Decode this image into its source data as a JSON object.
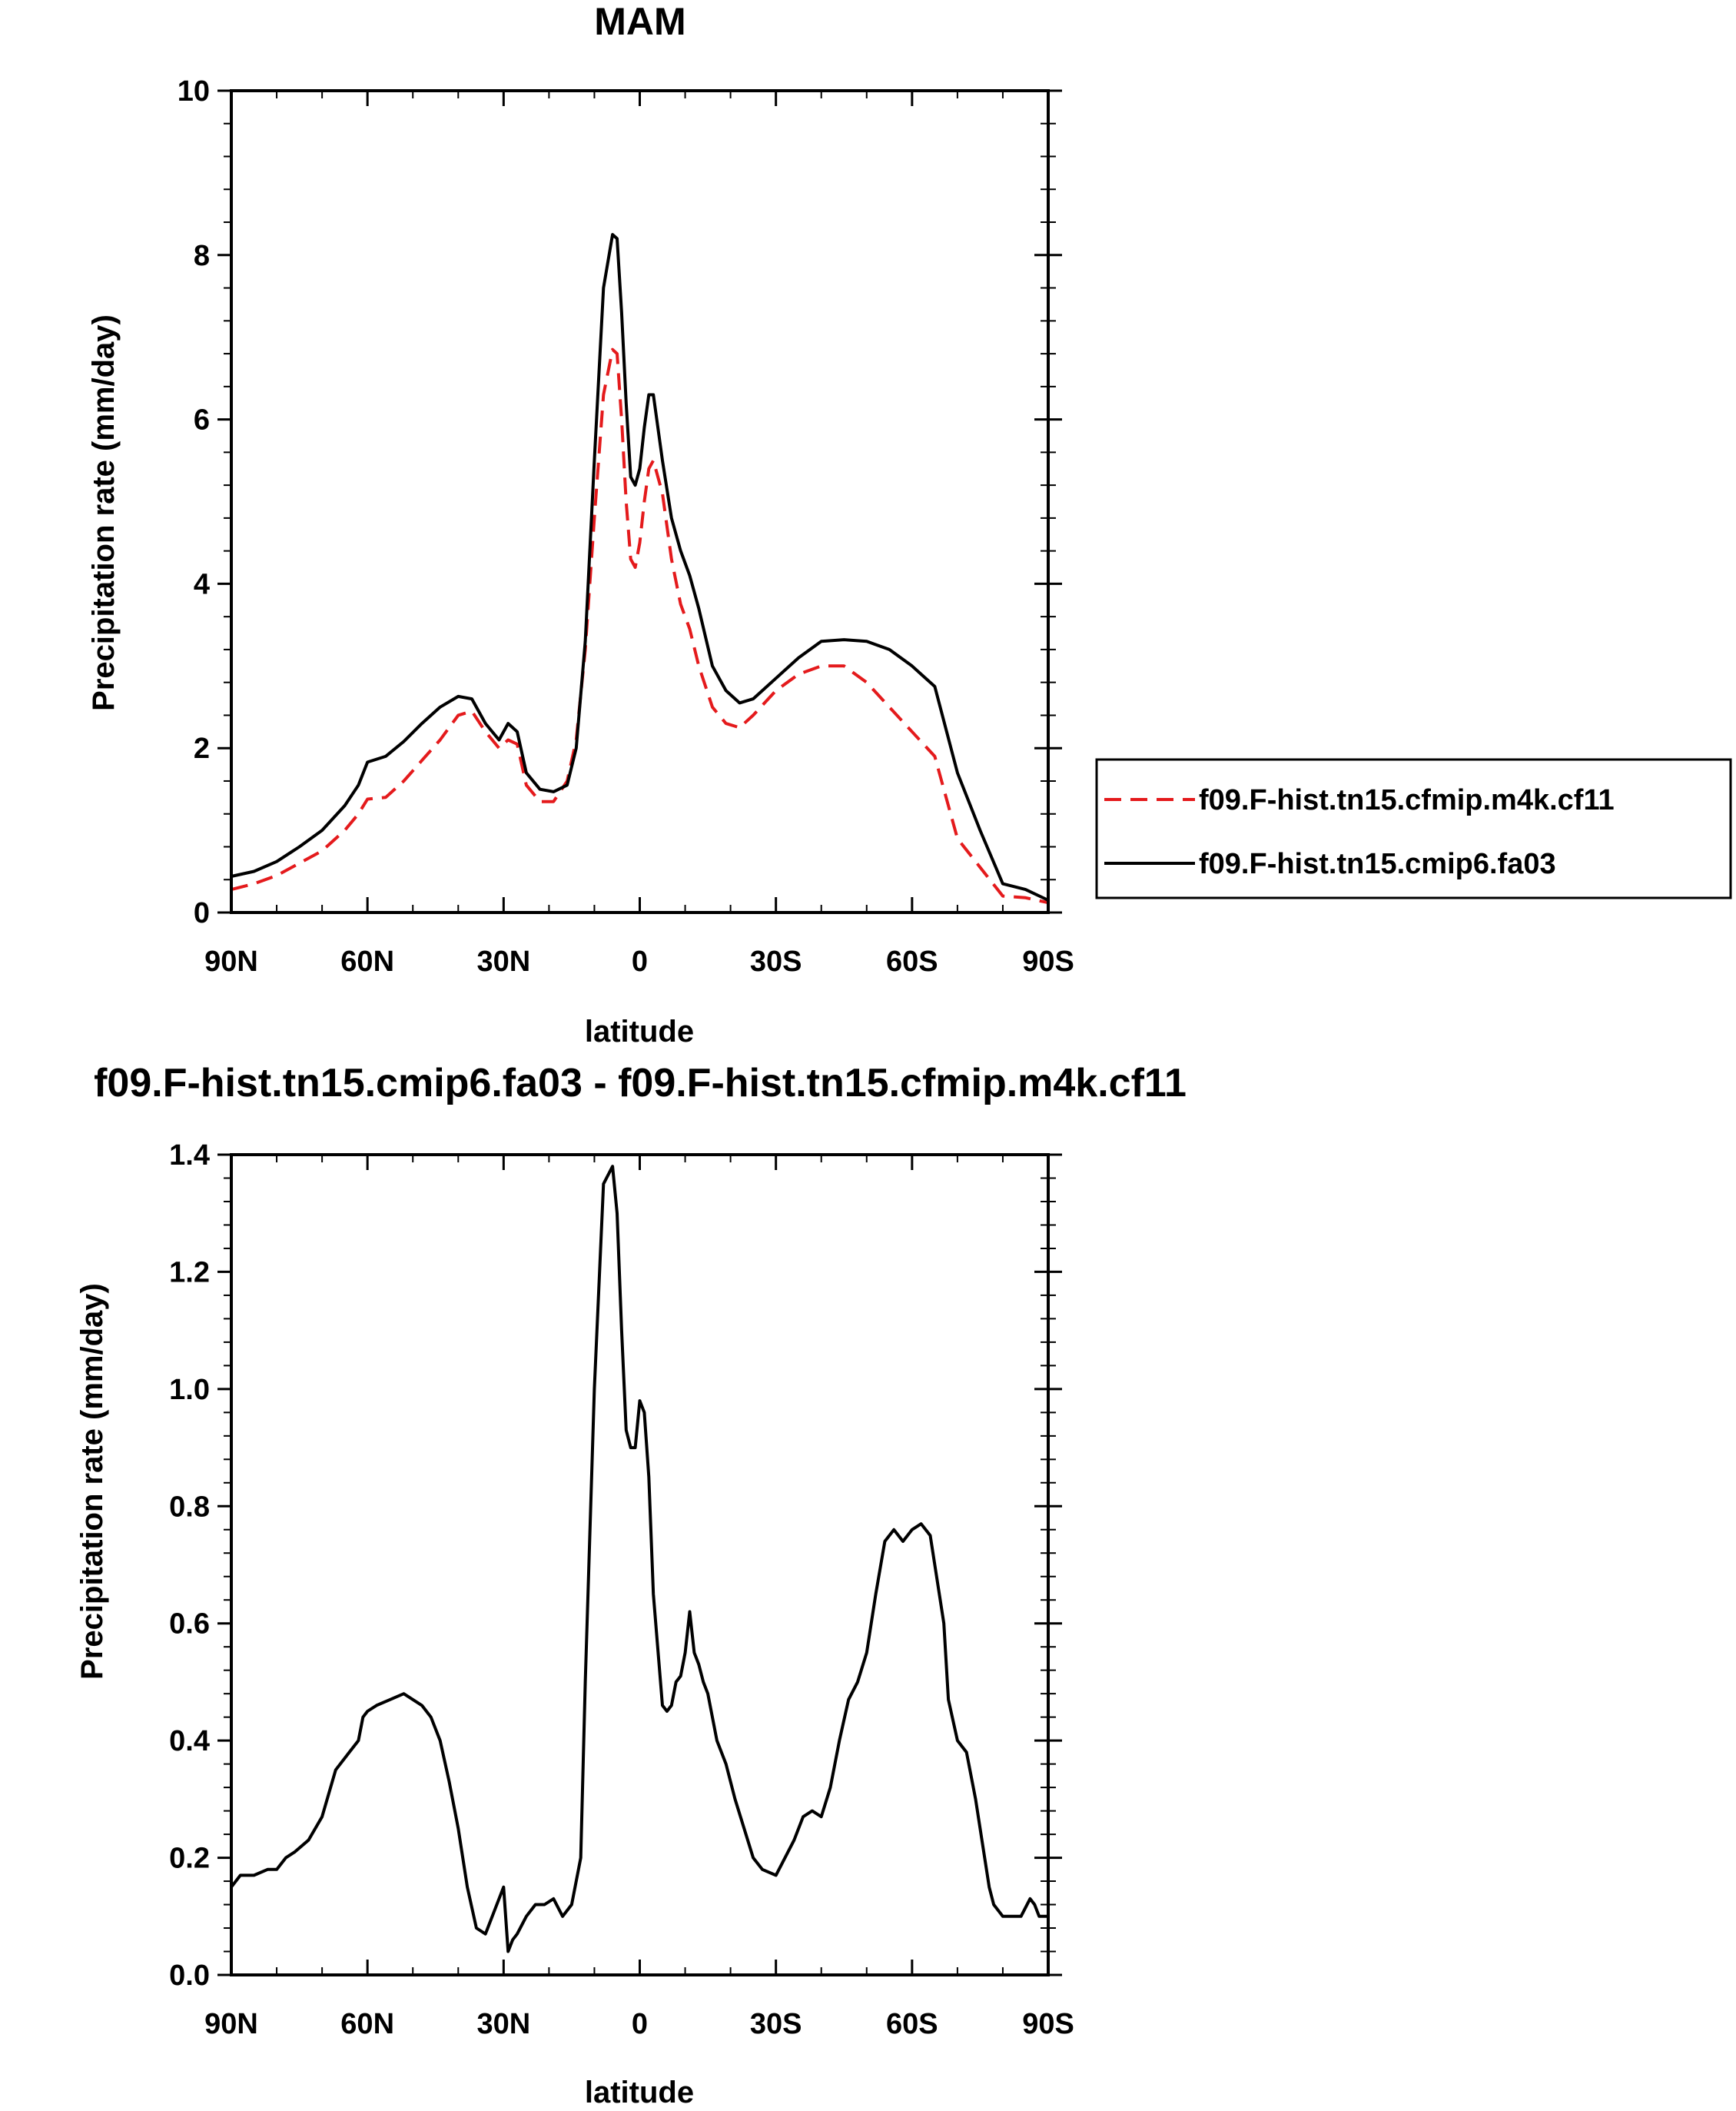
{
  "chart_data": [
    {
      "type": "line",
      "title": "MAM",
      "xlabel": "latitude",
      "ylabel": "Precipitation rate (mm/day)",
      "xlim": [
        90,
        -90
      ],
      "ylim": [
        0,
        10
      ],
      "x_ticks": [
        90,
        60,
        30,
        0,
        -30,
        -60,
        -90
      ],
      "x_tick_labels": [
        "90N",
        "60N",
        "30N",
        "0",
        "30S",
        "60S",
        "90S"
      ],
      "y_ticks": [
        0,
        2,
        4,
        6,
        8,
        10
      ],
      "y_tick_labels": [
        "0",
        "2",
        "4",
        "6",
        "8",
        "10"
      ],
      "legend_position": "right",
      "grid": false,
      "series": [
        {
          "name": "f09.F-hist.tn15.cfmip.m4k.cf11",
          "color": "#e41a1c",
          "style": "dashed",
          "x": [
            90,
            85,
            80,
            75,
            70,
            65,
            62,
            60,
            56,
            52,
            48,
            44,
            40,
            37,
            34,
            31,
            29,
            27,
            25,
            22,
            19,
            16,
            14,
            12,
            10,
            8,
            6,
            5,
            4,
            3,
            2,
            1,
            0,
            -1,
            -2,
            -3,
            -5,
            -7,
            -9,
            -11,
            -13,
            -16,
            -19,
            -22,
            -25,
            -30,
            -35,
            -40,
            -45,
            -50,
            -55,
            -60,
            -65,
            -70,
            -75,
            -80,
            -85,
            -90
          ],
          "y": [
            0.28,
            0.35,
            0.45,
            0.6,
            0.75,
            1.0,
            1.2,
            1.38,
            1.4,
            1.6,
            1.85,
            2.1,
            2.4,
            2.45,
            2.2,
            2.0,
            2.1,
            2.05,
            1.55,
            1.35,
            1.35,
            1.6,
            2.1,
            3.2,
            4.8,
            6.3,
            6.85,
            6.8,
            6.0,
            5.0,
            4.3,
            4.2,
            4.5,
            5.0,
            5.4,
            5.5,
            5.1,
            4.3,
            3.75,
            3.45,
            3.0,
            2.5,
            2.3,
            2.25,
            2.4,
            2.7,
            2.9,
            3.0,
            3.0,
            2.8,
            2.5,
            2.2,
            1.9,
            0.9,
            0.55,
            0.2,
            0.18,
            0.12
          ]
        },
        {
          "name": "f09.F-hist.tn15.cmip6.fa03",
          "color": "#000000",
          "style": "solid",
          "x": [
            90,
            85,
            80,
            75,
            70,
            65,
            62,
            60,
            56,
            52,
            48,
            44,
            40,
            37,
            34,
            31,
            29,
            27,
            25,
            22,
            19,
            16,
            14,
            12,
            10,
            8,
            6,
            5,
            4,
            3,
            2,
            1,
            0,
            -1,
            -2,
            -3,
            -5,
            -7,
            -9,
            -11,
            -13,
            -16,
            -19,
            -22,
            -25,
            -30,
            -35,
            -40,
            -45,
            -50,
            -55,
            -60,
            -62,
            -65,
            -70,
            -75,
            -80,
            -85,
            -90
          ],
          "y": [
            0.44,
            0.5,
            0.62,
            0.8,
            1.0,
            1.3,
            1.55,
            1.83,
            1.9,
            2.08,
            2.3,
            2.5,
            2.63,
            2.6,
            2.3,
            2.1,
            2.3,
            2.2,
            1.7,
            1.5,
            1.47,
            1.55,
            2.0,
            3.3,
            5.5,
            7.6,
            8.25,
            8.2,
            7.3,
            6.2,
            5.3,
            5.2,
            5.4,
            5.9,
            6.3,
            6.3,
            5.5,
            4.8,
            4.4,
            4.1,
            3.7,
            3.0,
            2.7,
            2.55,
            2.6,
            2.85,
            3.1,
            3.3,
            3.32,
            3.3,
            3.2,
            3.0,
            2.9,
            2.75,
            1.7,
            1.0,
            0.35,
            0.28,
            0.15
          ]
        }
      ]
    },
    {
      "type": "line",
      "title": "f09.F-hist.tn15.cmip6.fa03 - f09.F-hist.tn15.cfmip.m4k.cf11",
      "xlabel": "latitude",
      "ylabel": "Precipitation rate (mm/day)",
      "xlim": [
        90,
        -90
      ],
      "ylim": [
        0,
        1.4
      ],
      "x_ticks": [
        90,
        60,
        30,
        0,
        -30,
        -60,
        -90
      ],
      "x_tick_labels": [
        "90N",
        "60N",
        "30N",
        "0",
        "30S",
        "60S",
        "90S"
      ],
      "y_ticks": [
        0,
        0.2,
        0.4,
        0.6,
        0.8,
        1.0,
        1.2,
        1.4
      ],
      "y_tick_labels": [
        "0.0",
        "0.2",
        "0.4",
        "0.6",
        "0.8",
        "1.0",
        "1.2",
        "1.4"
      ],
      "grid": false,
      "series": [
        {
          "color": "#000000",
          "style": "solid",
          "x": [
            90,
            88,
            85,
            82,
            80,
            78,
            76,
            73,
            70,
            67,
            64,
            62,
            61,
            60,
            58,
            55,
            52,
            50,
            48,
            46,
            44,
            42,
            40,
            38,
            36,
            34,
            32,
            30,
            29,
            28,
            27,
            25,
            23,
            21,
            19,
            17,
            15,
            13,
            12,
            10,
            8,
            6,
            5,
            4,
            3,
            2,
            1,
            0,
            -1,
            -2,
            -3,
            -5,
            -6,
            -7,
            -8,
            -9,
            -10,
            -11,
            -12,
            -13,
            -14,
            -15,
            -17,
            -19,
            -21,
            -23,
            -25,
            -27,
            -30,
            -32,
            -34,
            -36,
            -38,
            -40,
            -42,
            -44,
            -46,
            -48,
            -50,
            -52,
            -54,
            -56,
            -58,
            -60,
            -62,
            -64,
            -65,
            -66,
            -67,
            -68,
            -70,
            -72,
            -74,
            -76,
            -77,
            -78,
            -80,
            -82,
            -84,
            -86,
            -87,
            -88,
            -90
          ],
          "y": [
            0.15,
            0.17,
            0.17,
            0.18,
            0.18,
            0.2,
            0.21,
            0.23,
            0.27,
            0.35,
            0.38,
            0.4,
            0.44,
            0.45,
            0.46,
            0.47,
            0.48,
            0.47,
            0.46,
            0.44,
            0.4,
            0.33,
            0.25,
            0.15,
            0.08,
            0.07,
            0.11,
            0.15,
            0.04,
            0.06,
            0.07,
            0.1,
            0.12,
            0.12,
            0.13,
            0.1,
            0.12,
            0.2,
            0.5,
            1.0,
            1.35,
            1.38,
            1.3,
            1.1,
            0.93,
            0.9,
            0.9,
            0.98,
            0.96,
            0.85,
            0.65,
            0.46,
            0.45,
            0.46,
            0.5,
            0.51,
            0.55,
            0.62,
            0.55,
            0.53,
            0.5,
            0.48,
            0.4,
            0.36,
            0.3,
            0.25,
            0.2,
            0.18,
            0.17,
            0.2,
            0.23,
            0.27,
            0.28,
            0.27,
            0.32,
            0.4,
            0.47,
            0.5,
            0.55,
            0.65,
            0.74,
            0.76,
            0.74,
            0.76,
            0.77,
            0.75,
            0.7,
            0.65,
            0.6,
            0.47,
            0.4,
            0.38,
            0.3,
            0.2,
            0.15,
            0.12,
            0.1,
            0.1,
            0.1,
            0.13,
            0.12,
            0.1,
            0.1
          ]
        }
      ]
    }
  ]
}
